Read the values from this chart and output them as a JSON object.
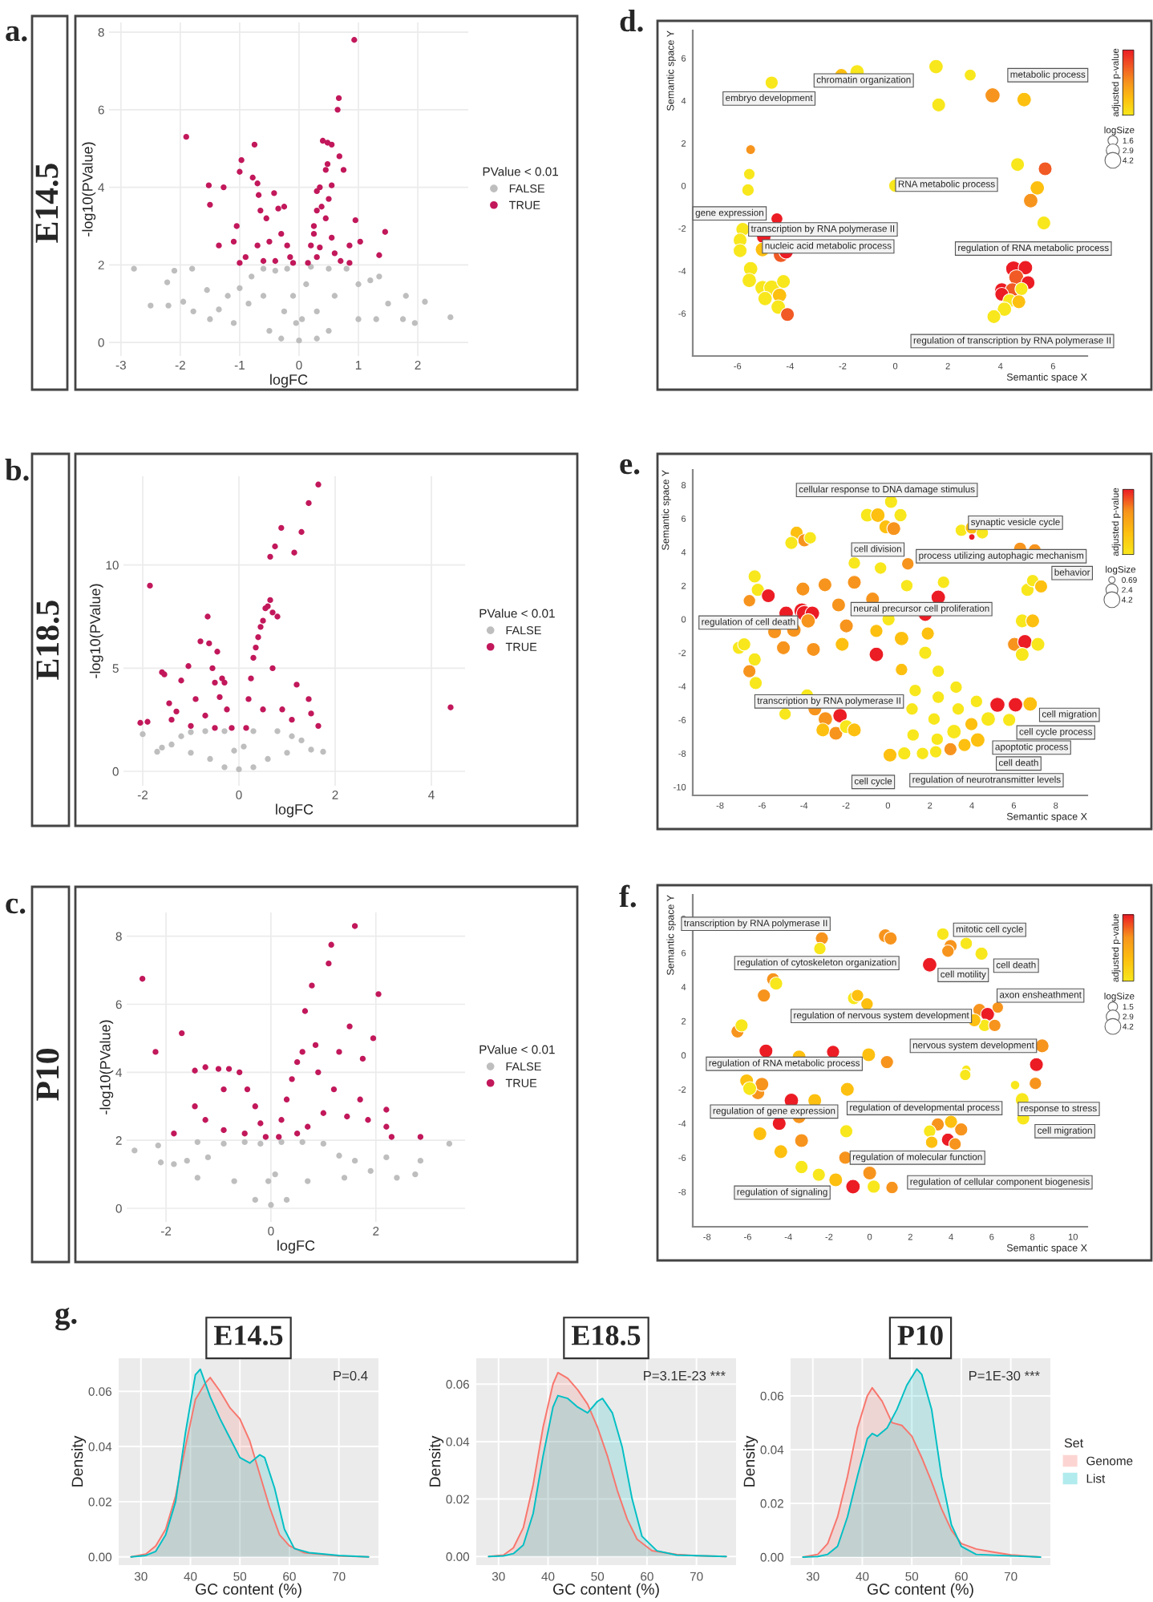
{
  "chart_data": [
    {
      "type": "scatter",
      "annotations": [
        "a.",
        "E14.5"
      ],
      "xlabel": "logFC",
      "ylabel": "-log10(PValue)",
      "legend_title": "PValue < 0.01",
      "legend": "right",
      "grid": true,
      "marker": "circle",
      "xlim": [
        -3.2,
        2.85
      ],
      "xticks": [
        -3,
        -2,
        -1,
        0,
        1,
        2
      ],
      "ylim": [
        -0.35,
        8.25
      ],
      "yticks": [
        0,
        2,
        4,
        6,
        8
      ],
      "series": [
        {
          "name": "FALSE",
          "color": "#bebebe",
          "x": [
            -2.78,
            -2.5,
            -2.22,
            -2.2,
            -2.1,
            -1.95,
            -1.8,
            -1.78,
            -1.55,
            -1.35,
            -1.2,
            -1.0,
            -0.85,
            -0.8,
            -0.6,
            -0.4,
            -0.2,
            -0.1,
            -0.05,
            0,
            0.05,
            0.12,
            0.2,
            0.5,
            0.8,
            1.0,
            1.2,
            1.35,
            1.5,
            1.75,
            1.8,
            1.95,
            2.12,
            2.55,
            -0.5,
            0.5,
            -0.3,
            0.3,
            -1.1,
            1.0,
            -0.6,
            0.6,
            -0.25,
            0.3,
            1.3,
            -1.5
          ],
          "values": [
            1.9,
            0.95,
            1.55,
            0.95,
            1.85,
            1.05,
            1.9,
            0.8,
            1.35,
            0.85,
            1.2,
            1.4,
            1.0,
            1.7,
            1.9,
            1.85,
            1.9,
            1.2,
            0.5,
            0.05,
            0.6,
            1.5,
            1.95,
            1.9,
            1.9,
            1.5,
            1.6,
            1.7,
            1.0,
            0.6,
            1.2,
            0.5,
            1.05,
            0.65,
            0.3,
            0.3,
            0.1,
            0.1,
            0.5,
            0.6,
            1.2,
            1.2,
            0.8,
            0.8,
            0.6,
            0.6
          ]
        },
        {
          "name": "TRUE",
          "color": "#c2185b",
          "x": [
            -1.9,
            -1.52,
            -1.5,
            -1.27,
            -1.35,
            -1.1,
            -1.0,
            -0.97,
            -0.75,
            -0.78,
            -0.7,
            -0.68,
            -0.65,
            -0.42,
            -0.35,
            -0.25,
            -0.55,
            -1.05,
            -0.9,
            -0.7,
            -0.5,
            -0.3,
            -0.2,
            -0.15,
            -0.4,
            -0.6,
            -1.0,
            -0.1,
            0.15,
            0.2,
            0.25,
            0.3,
            0.35,
            0.3,
            0.38,
            0.45,
            0.5,
            0.55,
            0.4,
            0.48,
            0.55,
            0.48,
            0.45,
            0.65,
            0.67,
            0.68,
            0.75,
            0.93,
            0.95,
            1.03,
            1.45,
            1.35,
            0.85,
            0.85,
            0.6,
            0.55,
            0.7,
            0.3,
            0.25,
            0.35
          ],
          "values": [
            5.3,
            4.05,
            3.55,
            4.0,
            2.5,
            2.6,
            4.4,
            4.7,
            5.1,
            4.25,
            4.1,
            3.8,
            3.4,
            3.85,
            3.45,
            3.5,
            3.2,
            3.0,
            2.2,
            2.5,
            2.6,
            2.8,
            2.5,
            2.2,
            2.1,
            2.1,
            2.05,
            2.05,
            2.05,
            2.5,
            3.0,
            3.4,
            4.0,
            3.9,
            3.5,
            3.2,
            3.7,
            4.05,
            5.2,
            5.15,
            5.1,
            4.6,
            4.45,
            6.0,
            6.3,
            4.8,
            4.45,
            7.8,
            3.15,
            2.6,
            2.85,
            2.25,
            2.5,
            2.05,
            2.3,
            2.7,
            2.1,
            2.2,
            2.8,
            2.45
          ]
        }
      ]
    },
    {
      "type": "scatter",
      "annotations": [
        "b.",
        "E18.5"
      ],
      "xlabel": "logFC",
      "ylabel": "-log10(PValue)",
      "legend_title": "PValue < 0.01",
      "legend": "right",
      "grid": true,
      "marker": "circle",
      "xlim": [
        -2.4,
        4.7
      ],
      "xticks": [
        -2,
        0,
        2,
        4
      ],
      "ylim": [
        -0.7,
        14.3
      ],
      "yticks": [
        0,
        5,
        10
      ],
      "series": [
        {
          "name": "FALSE",
          "color": "#bebebe",
          "x": [
            -2.0,
            -1.6,
            -1.4,
            -1.2,
            -1.0,
            -0.7,
            -0.3,
            -0.1,
            0,
            0.1,
            0.3,
            0.8,
            1.1,
            1.3,
            1.5,
            1.75,
            -0.6,
            0.6,
            -0.3,
            0.3,
            -1.0,
            1.0,
            -1.7
          ],
          "values": [
            1.8,
            1.15,
            1.3,
            1.7,
            1.9,
            1.95,
            1.95,
            1.0,
            0.1,
            1.2,
            1.95,
            1.95,
            1.7,
            1.5,
            1.05,
            0.95,
            0.6,
            0.6,
            0.2,
            0.2,
            0.9,
            0.9,
            0.95
          ]
        },
        {
          "name": "TRUE",
          "color": "#c2185b",
          "x": [
            -2.05,
            -1.9,
            -1.85,
            -1.6,
            -1.55,
            -1.45,
            -1.4,
            -1.2,
            -1.05,
            -1.3,
            -0.9,
            -0.8,
            -0.65,
            -0.62,
            -0.55,
            -0.5,
            -0.45,
            -0.4,
            -0.35,
            -0.3,
            -0.25,
            -0.7,
            -1.0,
            -0.5,
            -0.15,
            0.15,
            0.2,
            0.25,
            0.3,
            0.35,
            0.4,
            0.45,
            0.5,
            0.55,
            0.6,
            0.65,
            0.7,
            0.8,
            0.65,
            0.75,
            0.88,
            1.15,
            1.3,
            1.45,
            1.65,
            1.2,
            1.45,
            1.5,
            1.65,
            1.1,
            0.9,
            0.7,
            0.5,
            4.4
          ],
          "values": [
            2.35,
            2.4,
            9.0,
            4.8,
            4.7,
            3.3,
            2.5,
            4.4,
            5.1,
            2.9,
            3.5,
            6.3,
            7.5,
            6.2,
            5.0,
            4.3,
            5.8,
            3.6,
            4.5,
            4.3,
            3.0,
            2.7,
            2.2,
            2.1,
            2.1,
            2.1,
            3.5,
            4.5,
            5.5,
            6.0,
            6.5,
            7.0,
            7.3,
            7.9,
            8.0,
            8.3,
            7.7,
            7.5,
            10.4,
            10.9,
            11.8,
            10.6,
            11.6,
            13.0,
            13.9,
            4.2,
            3.5,
            2.8,
            2.2,
            2.5,
            3.0,
            5.0,
            3.0,
            3.1
          ]
        }
      ]
    },
    {
      "type": "scatter",
      "annotations": [
        "c.",
        "P10"
      ],
      "xlabel": "logFC",
      "ylabel": "-log10(PValue)",
      "legend_title": "PValue < 0.01",
      "legend": "right",
      "grid": true,
      "marker": "circle",
      "xlim": [
        -2.75,
        3.7
      ],
      "xticks": [
        -2,
        0,
        2
      ],
      "ylim": [
        -0.4,
        8.7
      ],
      "yticks": [
        0,
        2,
        4,
        6,
        8
      ],
      "series": [
        {
          "name": "FALSE",
          "color": "#bebebe",
          "x": [
            -2.6,
            -2.15,
            -2.1,
            -1.85,
            -1.6,
            -1.4,
            -1.2,
            -0.9,
            -0.5,
            -0.2,
            -0.05,
            0,
            0.08,
            0.2,
            0.6,
            1.0,
            1.3,
            1.6,
            1.9,
            2.2,
            2.75,
            2.85,
            3.4,
            -0.7,
            0.7,
            -0.3,
            0.3,
            -1.4,
            1.4,
            2.4
          ],
          "values": [
            1.7,
            1.85,
            1.35,
            1.3,
            1.4,
            1.95,
            1.5,
            1.9,
            1.95,
            1.9,
            0.8,
            0.1,
            1.0,
            1.95,
            1.95,
            1.9,
            1.55,
            1.4,
            1.1,
            1.5,
            1.0,
            1.4,
            1.9,
            0.8,
            0.8,
            0.25,
            0.25,
            0.9,
            0.9,
            0.9
          ]
        },
        {
          "name": "TRUE",
          "color": "#c2185b",
          "x": [
            -2.45,
            -2.2,
            -1.85,
            -1.7,
            -1.45,
            -1.45,
            -1.25,
            -1.0,
            -0.9,
            -0.8,
            -0.6,
            -0.45,
            -0.3,
            -0.2,
            -0.1,
            -0.5,
            -0.9,
            -1.25,
            0.15,
            0.2,
            0.3,
            0.4,
            0.5,
            0.6,
            0.65,
            0.78,
            0.85,
            0.9,
            1.1,
            1.15,
            1.5,
            1.6,
            1.3,
            1.2,
            1.0,
            0.7,
            1.45,
            1.75,
            1.7,
            1.85,
            1.95,
            2.05,
            2.2,
            2.2,
            2.3,
            2.85,
            0.5
          ],
          "values": [
            6.75,
            4.6,
            2.2,
            5.15,
            4.05,
            3.0,
            4.15,
            4.1,
            3.5,
            4.1,
            4.0,
            3.5,
            3.0,
            2.5,
            2.1,
            2.2,
            2.3,
            2.6,
            2.1,
            2.6,
            3.2,
            3.8,
            4.3,
            4.6,
            5.8,
            6.55,
            4.8,
            4.0,
            7.2,
            7.75,
            5.35,
            8.3,
            4.6,
            3.5,
            2.8,
            2.4,
            2.7,
            4.4,
            3.2,
            2.6,
            5.0,
            6.3,
            2.9,
            2.4,
            2.1,
            2.1,
            2.2
          ]
        }
      ]
    },
    {
      "type": "bubble",
      "xlabel": "Semantic space X",
      "ylabel": "Semantic space Y",
      "clabel": "adjusted p-value",
      "legend_title": "logSize",
      "size_legend": [
        1.6,
        2.9,
        4.2
      ],
      "xlim": [
        -7.7,
        7.3
      ],
      "xticks": [
        -6,
        -4,
        -2,
        0,
        2,
        4,
        6
      ],
      "ylim": [
        -8.0,
        7.3
      ],
      "yticks": [
        -6,
        -4,
        -2,
        0,
        2,
        4,
        6
      ],
      "annotations": [
        "d.",
        "embryo development",
        "chromatin organization",
        "metabolic process",
        "RNA metabolic process",
        "gene expression",
        "transcription by RNA polymerase II",
        "nucleic acid metabolic process",
        "regulation of RNA metabolic process",
        "regulation of transcription by RNA polymerase II"
      ],
      "series": [
        {
          "x": [
            -4.7,
            -1.45,
            -2.05,
            1.55,
            2.85,
            3.7,
            4.9,
            1.65,
            -5.5,
            -5.55,
            -5.6,
            0,
            4.65,
            5.7,
            5.4,
            5.15,
            5.65,
            -4.5,
            -5.8,
            -5.9,
            -5.9,
            -5.0,
            -5.05,
            -4.35,
            -4.15,
            -5.5,
            -5.55,
            -5.05,
            -4.7,
            -4.25,
            -4.95,
            -4.4,
            -4.45,
            -4.1,
            4.5,
            4.95,
            4.6,
            5.05,
            4.05,
            4.45,
            4.8,
            4.05,
            4.35,
            4.7,
            4.15,
            3.75
          ],
          "values": [
            4.85,
            5.35,
            5.2,
            5.6,
            5.2,
            4.25,
            4.05,
            3.8,
            1.7,
            0.55,
            -0.2,
            0,
            1.0,
            0.8,
            -0.1,
            -0.7,
            -1.75,
            -1.55,
            -2.05,
            -2.55,
            -3.05,
            -2.4,
            -3.0,
            -3.25,
            -3.1,
            -3.9,
            -4.45,
            -4.8,
            -4.8,
            -4.5,
            -5.3,
            -5.15,
            -5.7,
            -6.05,
            -3.9,
            -3.85,
            -4.3,
            -4.55,
            -4.9,
            -4.9,
            -4.85,
            -5.1,
            -5.4,
            -5.45,
            -5.8,
            -6.15
          ],
          "sizes": [
            2.9,
            3.5,
            2.9,
            3.5,
            2.4,
            3.8,
            3.5,
            3.2,
            1.6,
            2.2,
            2.6,
            2.9,
            3.2,
            3.2,
            3.5,
            3.5,
            3.2,
            2.4,
            3.2,
            3.2,
            3.2,
            3.5,
            3.5,
            3.8,
            3.5,
            3.5,
            3.5,
            3.8,
            4.2,
            3.2,
            3.5,
            3.5,
            3.5,
            3.2,
            4.2,
            3.5,
            3.8,
            3.2,
            3.5,
            3.5,
            2.9,
            3.2,
            3.2,
            3.2,
            3.5,
            3.2
          ],
          "colors": [
            "#f8e71c",
            "#f8e71c",
            "#fdc010",
            "#f8e71c",
            "#f8e71c",
            "#f7941d",
            "#fdc010",
            "#f8e71c",
            "#f7941d",
            "#f8e71c",
            "#f8e71c",
            "#f8e71c",
            "#f8e71c",
            "#f15a24",
            "#fdc010",
            "#f7941d",
            "#f8e71c",
            "#ec1c24",
            "#f8e71c",
            "#f8e71c",
            "#f8e71c",
            "#ec1c24",
            "#fdc010",
            "#f15a24",
            "#ec1c24",
            "#f8e71c",
            "#f8e71c",
            "#f8e71c",
            "#f8e71c",
            "#f8e71c",
            "#f8e71c",
            "#fdc010",
            "#f8e71c",
            "#f15a24",
            "#ec1c24",
            "#ec1c24",
            "#f15a24",
            "#ec1c24",
            "#ec1c24",
            "#f15a24",
            "#f8e71c",
            "#ec1c24",
            "#f8e71c",
            "#fdc010",
            "#f8e71c",
            "#f8e71c"
          ]
        }
      ]
    },
    {
      "type": "bubble",
      "xlabel": "Semantic space X",
      "ylabel": "Semantic space Y",
      "clabel": "adjusted p-value",
      "legend_title": "logSize",
      "size_legend": [
        0.69,
        2.4,
        4.2
      ],
      "xlim": [
        -9.3,
        9.5
      ],
      "xticks": [
        -8,
        -6,
        -4,
        -2,
        0,
        2,
        4,
        6,
        8
      ],
      "ylim": [
        -10.5,
        8.9
      ],
      "yticks": [
        -10,
        -8,
        -6,
        -4,
        -2,
        0,
        2,
        4,
        6,
        8
      ],
      "annotations": [
        "e.",
        "cellular response to DNA damage stimulus",
        "synaptic vesicle cycle",
        "cell division",
        "process utilizing autophagic mechanism",
        "behavior",
        "neural precursor cell proliferation",
        "regulation of cell death",
        "transcription by RNA polymerase II",
        "cell migration",
        "cell cycle process",
        "apoptotic process",
        "cell death",
        "cell cycle",
        "regulation of neurotransmitter levels"
      ],
      "series": [
        {
          "x": [
            0.15,
            -0.98,
            -0.48,
            0.6,
            -0.1,
            0.28,
            -4.35,
            -3.98,
            -4.6,
            -3.7,
            3.5,
            4.0,
            4.5,
            4.0,
            -1.6,
            -0.35,
            0.95,
            0.9,
            2.65,
            -6.35,
            -6.2,
            -6.6,
            -5.7,
            -4.05,
            -3.0,
            -1.6,
            -0.73,
            -2.35,
            2.4,
            1.78,
            -4.85,
            -4.1,
            -3.98,
            -3.6,
            -4.48,
            -3.8,
            -5.4,
            -4.98,
            -3.55,
            -2.18,
            -7.1,
            -6.85,
            -6.35,
            -6.6,
            -6.3,
            -1.98,
            -0.55,
            0.03,
            0.65,
            1.9,
            -0.55,
            1.78,
            0.65,
            2.4,
            6.65,
            6.9,
            7.3,
            6.4,
            6.9,
            6.03,
            6.53,
            7.15,
            6.4,
            6.3,
            7.0,
            -3.85,
            -4.9,
            -3.48,
            -2.98,
            -2.28,
            -3.1,
            -2.48,
            -1.98,
            -1.6,
            1.3,
            2.4,
            3.25,
            4.22,
            1.15,
            2.2,
            3.35,
            1.2,
            2.35,
            5.22,
            6.08,
            6.78,
            4.78,
            5.78,
            3.98,
            3.15,
            4.28,
            3.65,
            2.98,
            2.28,
            1.65,
            0.1,
            0.78
          ],
          "values": [
            7.0,
            6.2,
            6.2,
            6.2,
            5.5,
            5.4,
            5.15,
            4.7,
            4.55,
            4.85,
            5.3,
            5.45,
            5.15,
            4.9,
            3.35,
            3.05,
            3.3,
            2.0,
            2.2,
            2.55,
            1.75,
            1.1,
            1.4,
            1.8,
            2.05,
            2.2,
            1.2,
            0.85,
            1.3,
            0.28,
            0.35,
            0.5,
            0.35,
            0.35,
            -0.65,
            -0.1,
            -0.75,
            -1.7,
            -1.8,
            -1.5,
            -1.7,
            -1.5,
            -2.4,
            -3.1,
            -3.8,
            -0.4,
            -0.7,
            0,
            -1.15,
            -0.85,
            -2.1,
            -2.0,
            -3.0,
            -3.1,
            1.75,
            2.3,
            1.95,
            -0.1,
            -0.1,
            -1.5,
            -1.35,
            -1.5,
            -2.1,
            4.2,
            4.1,
            -4.55,
            -5.65,
            -5.35,
            -5.95,
            -5.75,
            -6.6,
            -6.8,
            -6.4,
            -6.6,
            -4.25,
            -4.65,
            -4.05,
            -4.9,
            -5.35,
            -5.95,
            -5.35,
            -6.9,
            -7.15,
            -5.1,
            -5.1,
            -5.05,
            -5.95,
            -6.0,
            -6.25,
            -6.7,
            -7.2,
            -7.5,
            -7.75,
            -7.9,
            -8.0,
            -8.1,
            -8.0
          ],
          "sizes": [
            2.9,
            3.2,
            3.5,
            2.9,
            3.2,
            3.2,
            2.9,
            2.9,
            2.9,
            2.6,
            2.6,
            2.9,
            2.6,
            0.69,
            2.6,
            2.6,
            2.6,
            2.6,
            2.6,
            2.9,
            2.9,
            2.6,
            3.2,
            3.2,
            3.2,
            3.2,
            3.2,
            3.2,
            3.5,
            3.2,
            3.5,
            4.2,
            4.2,
            3.5,
            3.5,
            3.5,
            3.2,
            3.2,
            3.2,
            3.2,
            2.9,
            2.9,
            2.9,
            2.9,
            2.9,
            3.2,
            2.9,
            2.9,
            3.5,
            2.9,
            3.5,
            2.9,
            2.6,
            2.6,
            2.9,
            2.6,
            2.9,
            3.2,
            3.2,
            3.2,
            3.5,
            3.2,
            3.2,
            2.9,
            2.9,
            2.9,
            2.6,
            3.2,
            3.5,
            3.5,
            3.2,
            3.2,
            3.2,
            3.2,
            2.6,
            2.6,
            2.6,
            2.6,
            2.6,
            2.6,
            2.6,
            2.6,
            2.6,
            3.8,
            3.5,
            3.5,
            3.5,
            2.9,
            2.9,
            3.5,
            3.5,
            2.9,
            2.9,
            2.6,
            2.6,
            3.2,
            2.9
          ],
          "colors": [
            "#f8e71c",
            "#f8e71c",
            "#fdc010",
            "#f8e71c",
            "#fdc010",
            "#f7941d",
            "#fdc010",
            "#f7941d",
            "#f8e71c",
            "#f8e71c",
            "#f8e71c",
            "#fdc010",
            "#f8e71c",
            "#ec1c24",
            "#f8e71c",
            "#f8e71c",
            "#f7941d",
            "#f8e71c",
            "#f8e71c",
            "#f8e71c",
            "#f8e71c",
            "#f7941d",
            "#ec1c24",
            "#f7941d",
            "#f7941d",
            "#f7941d",
            "#f7941d",
            "#f7941d",
            "#ec1c24",
            "#ec1c24",
            "#ec1c24",
            "#ec1c24",
            "#ec1c24",
            "#ec1c24",
            "#f7941d",
            "#f7941d",
            "#f7941d",
            "#f7941d",
            "#f7941d",
            "#fdc010",
            "#f8e71c",
            "#f8e71c",
            "#f8e71c",
            "#f7941d",
            "#f8e71c",
            "#f7941d",
            "#fdc010",
            "#f8e71c",
            "#fdc010",
            "#fdc010",
            "#ec1c24",
            "#f8e71c",
            "#fdc010",
            "#f8e71c",
            "#f8e71c",
            "#f8e71c",
            "#fdc010",
            "#f8e71c",
            "#fdc010",
            "#f7941d",
            "#ec1c24",
            "#f8e71c",
            "#f8e71c",
            "#f7941d",
            "#f7941d",
            "#f8e71c",
            "#f8e71c",
            "#f7941d",
            "#f7941d",
            "#ec1c24",
            "#fdc010",
            "#f7941d",
            "#f8e71c",
            "#fdc010",
            "#f8e71c",
            "#f8e71c",
            "#f8e71c",
            "#f8e71c",
            "#f8e71c",
            "#f8e71c",
            "#f8e71c",
            "#f8e71c",
            "#f8e71c",
            "#ec1c24",
            "#ec1c24",
            "#fdc010",
            "#f8e71c",
            "#f8e71c",
            "#fdc010",
            "#f8e71c",
            "#fdc010",
            "#fdc010",
            "#f7941d",
            "#f8e71c",
            "#f8e71c",
            "#fdc010",
            "#f8e71c"
          ]
        }
      ]
    },
    {
      "type": "bubble",
      "xlabel": "Semantic space X",
      "ylabel": "Semantic space Y",
      "clabel": "adjusted p-value",
      "legend_title": "logSize",
      "size_legend": [
        1.5,
        2.9,
        4.2
      ],
      "xlim": [
        -8.7,
        10.7
      ],
      "xticks": [
        -8,
        -6,
        -4,
        -2,
        0,
        2,
        4,
        6,
        8,
        10
      ],
      "ylim": [
        -10.05,
        9.4
      ],
      "yticks": [
        -8,
        -6,
        -4,
        -2,
        0,
        2,
        4,
        6,
        8
      ],
      "annotations": [
        "f.",
        "transcription by RNA polymerase II",
        "mitotic cell cycle",
        "cell death",
        "cell motility",
        "regulation of cytoskeleton organization",
        "axon ensheathment",
        "regulation of nervous system development",
        "nervous system development",
        "regulation of RNA metabolic process",
        "regulation of gene expression",
        "regulation of developmental process",
        "response to stress",
        "cell migration",
        "regulation of molecular function",
        "regulation of signaling",
        "regulation of cellular component biogenesis"
      ],
      "series": [
        {
          "x": [
            -2.35,
            0.77,
            1.03,
            3.6,
            3.98,
            4.75,
            2.95,
            5.5,
            3.85,
            -2.45,
            -4.75,
            -4.6,
            -5.2,
            -0.77,
            -0.13,
            -0.6,
            -6.5,
            -6.3,
            -5.1,
            -3.47,
            -1.8,
            -0.05,
            0.85,
            5.4,
            5.8,
            5.65,
            6.15,
            6.3,
            5.15,
            8.48,
            8.2,
            4.75,
            4.7,
            7.15,
            8.15,
            7.5,
            7.55,
            -6.05,
            -5.5,
            -5.3,
            -5.9,
            -3.85,
            -3.47,
            -2.7,
            -4.45,
            -5.4,
            -3.35,
            -4.37,
            -1.1,
            -1.15,
            -1.2,
            -3.35,
            -2.5,
            -1.67,
            -0.82,
            0,
            0.2,
            1.1,
            3.35,
            4.0,
            4.5,
            3.85,
            2.95,
            3.05,
            4.2
          ],
          "values": [
            6.85,
            7.0,
            6.85,
            7.1,
            6.4,
            6.55,
            5.3,
            5.95,
            6.1,
            6.25,
            4.45,
            4.2,
            3.5,
            3.35,
            3.0,
            3.5,
            1.4,
            1.75,
            0.25,
            -0.1,
            0.2,
            0.03,
            -0.4,
            2.65,
            2.4,
            1.75,
            1.75,
            2.8,
            2.05,
            0.55,
            -0.55,
            -0.85,
            -1.15,
            -1.75,
            -1.65,
            -2.6,
            -3.7,
            -1.5,
            -2.2,
            -1.7,
            -1.95,
            -2.65,
            -3.6,
            -2.65,
            -4.0,
            -4.6,
            -5.0,
            -5.65,
            -2.0,
            -4.45,
            -6.0,
            -6.55,
            -7.0,
            -7.3,
            -7.7,
            -6.9,
            -7.7,
            -7.75,
            -4.05,
            -3.9,
            -4.35,
            -4.95,
            -4.45,
            -5.1,
            -5.2
          ],
          "sizes": [
            2.9,
            3.2,
            2.9,
            2.6,
            2.9,
            2.6,
            3.5,
            2.9,
            2.6,
            2.6,
            2.9,
            2.9,
            2.9,
            2.9,
            2.6,
            2.6,
            2.9,
            2.9,
            3.2,
            3.2,
            2.9,
            3.2,
            2.9,
            2.9,
            3.2,
            2.6,
            2.6,
            2.2,
            2.9,
            3.2,
            3.2,
            1.5,
            2.2,
            1.5,
            2.6,
            3.2,
            2.9,
            3.2,
            3.2,
            3.2,
            3.2,
            3.5,
            3.2,
            3.2,
            3.2,
            3.2,
            3.2,
            3.2,
            3.2,
            2.9,
            2.9,
            2.9,
            2.9,
            3.2,
            3.5,
            3.2,
            2.9,
            2.6,
            2.9,
            2.9,
            2.9,
            2.9,
            2.6,
            2.6,
            2.6
          ],
          "colors": [
            "#f7941d",
            "#f7941d",
            "#f7941d",
            "#f8e71c",
            "#f7941d",
            "#f8e71c",
            "#ec1c24",
            "#f8e71c",
            "#f7941d",
            "#f8e71c",
            "#f7941d",
            "#f8e71c",
            "#f7941d",
            "#f8e71c",
            "#fdc010",
            "#fdc010",
            "#f7941d",
            "#f8e71c",
            "#ec1c24",
            "#fdc010",
            "#ec1c24",
            "#fdc010",
            "#f7941d",
            "#f7941d",
            "#ec1c24",
            "#f8e71c",
            "#f7941d",
            "#f7941d",
            "#fdc010",
            "#f7941d",
            "#ec1c24",
            "#f8e71c",
            "#f8e71c",
            "#f8e71c",
            "#f7941d",
            "#f8e71c",
            "#f8e71c",
            "#fdc010",
            "#f7941d",
            "#f7941d",
            "#f8e71c",
            "#ec1c24",
            "#f7941d",
            "#fdc010",
            "#ec1c24",
            "#fdc010",
            "#f7941d",
            "#fdc010",
            "#fdc010",
            "#f8e71c",
            "#f7941d",
            "#f8e71c",
            "#f8e71c",
            "#fdc010",
            "#ec1c24",
            "#f7941d",
            "#f8e71c",
            "#f7941d",
            "#f7941d",
            "#fdc010",
            "#f7941d",
            "#ec1c24",
            "#f8e71c",
            "#fdc010",
            "#f7941d"
          ]
        }
      ]
    },
    {
      "type": "area",
      "title": "E14.5",
      "annotations": [
        "g.",
        "P=0.4"
      ],
      "xlabel": "GC content (%)",
      "ylabel": "Density",
      "grid": true,
      "xlim": [
        25.5,
        78
      ],
      "xticks": [
        30,
        40,
        50,
        60,
        70
      ],
      "ylim": [
        -0.003,
        0.072
      ],
      "yticks": [
        {
          "value": 0,
          "label": "0.00"
        },
        {
          "value": 0.02,
          "label": "0.02"
        },
        {
          "value": 0.04,
          "label": "0.04"
        },
        {
          "value": 0.06,
          "label": "0.06"
        }
      ],
      "series": [
        {
          "color": "#f8766d",
          "x": [
            28,
            31,
            33,
            35,
            37,
            39,
            41,
            43,
            44,
            46,
            48,
            50,
            52,
            54,
            56,
            58,
            60,
            63,
            66,
            70,
            76
          ],
          "values": [
            0,
            0.001,
            0.004,
            0.01,
            0.022,
            0.04,
            0.057,
            0.063,
            0.065,
            0.06,
            0.054,
            0.05,
            0.042,
            0.03,
            0.018,
            0.008,
            0.004,
            0.0015,
            0.001,
            0.0003,
            0
          ]
        },
        {
          "color": "#00bfc4",
          "x": [
            28,
            31,
            33,
            35,
            37,
            39,
            41,
            42,
            43,
            44,
            46,
            48,
            50,
            52,
            54,
            55,
            57,
            59,
            61,
            64,
            70,
            76
          ],
          "values": [
            0,
            0.0005,
            0.002,
            0.008,
            0.02,
            0.045,
            0.066,
            0.068,
            0.063,
            0.058,
            0.05,
            0.043,
            0.036,
            0.034,
            0.037,
            0.036,
            0.025,
            0.01,
            0.003,
            0.0015,
            0.0005,
            0
          ]
        }
      ]
    },
    {
      "type": "area",
      "title": "E18.5",
      "annotations": [
        "P=3.1E-23 ***"
      ],
      "xlabel": "GC content (%)",
      "ylabel": "Density",
      "grid": true,
      "xlim": [
        25.5,
        78
      ],
      "xticks": [
        30,
        40,
        50,
        60,
        70
      ],
      "ylim": [
        -0.003,
        0.069
      ],
      "yticks": [
        {
          "value": 0,
          "label": "0.00"
        },
        {
          "value": 0.02,
          "label": "0.02"
        },
        {
          "value": 0.04,
          "label": "0.04"
        },
        {
          "value": 0.06,
          "label": "0.06"
        }
      ],
      "series": [
        {
          "color": "#f8766d",
          "x": [
            28,
            31,
            33,
            35,
            37,
            39,
            41,
            42,
            44,
            46,
            48,
            50,
            52,
            54,
            56,
            58,
            61,
            66,
            70,
            76
          ],
          "values": [
            0,
            0.0005,
            0.003,
            0.01,
            0.025,
            0.045,
            0.06,
            0.064,
            0.062,
            0.058,
            0.053,
            0.045,
            0.035,
            0.023,
            0.013,
            0.006,
            0.002,
            0.0007,
            0.0003,
            0
          ]
        },
        {
          "color": "#00bfc4",
          "x": [
            28,
            31,
            33,
            35,
            37,
            39,
            41,
            42,
            44,
            46,
            48,
            50,
            51,
            53,
            55,
            57,
            59,
            62,
            66,
            76
          ],
          "values": [
            0,
            0.0002,
            0.001,
            0.004,
            0.015,
            0.035,
            0.052,
            0.056,
            0.055,
            0.052,
            0.05,
            0.054,
            0.055,
            0.05,
            0.038,
            0.02,
            0.007,
            0.002,
            0.0005,
            0
          ]
        }
      ]
    },
    {
      "type": "area",
      "title": "P10",
      "annotations": [
        "P=1E-30 ***"
      ],
      "xlabel": "GC content (%)",
      "ylabel": "Density",
      "grid": true,
      "legend": "right",
      "legend_title": "Set",
      "xlim": [
        25.5,
        78
      ],
      "xticks": [
        30,
        40,
        50,
        60,
        70
      ],
      "ylim": [
        -0.003,
        0.074
      ],
      "yticks": [
        {
          "value": 0,
          "label": "0.00"
        },
        {
          "value": 0.02,
          "label": "0.02"
        },
        {
          "value": 0.04,
          "label": "0.04"
        },
        {
          "value": 0.06,
          "label": "0.06"
        }
      ],
      "series": [
        {
          "name": "Genome",
          "color": "#f8766d",
          "x": [
            28,
            31,
            33,
            35,
            37,
            39,
            41,
            42,
            44,
            46,
            48,
            50,
            52,
            54,
            56,
            58,
            60,
            63,
            66,
            70,
            76
          ],
          "values": [
            0,
            0.001,
            0.005,
            0.015,
            0.03,
            0.048,
            0.06,
            0.063,
            0.058,
            0.05,
            0.049,
            0.045,
            0.037,
            0.028,
            0.018,
            0.01,
            0.005,
            0.003,
            0.002,
            0.0008,
            0
          ]
        },
        {
          "name": "List",
          "color": "#00bfc4",
          "x": [
            28,
            31,
            33,
            35,
            37,
            39,
            41,
            42,
            43,
            45,
            47,
            49,
            51,
            52,
            54,
            56,
            58,
            60,
            63,
            76
          ],
          "values": [
            0,
            0.0002,
            0.001,
            0.004,
            0.015,
            0.03,
            0.044,
            0.046,
            0.045,
            0.048,
            0.055,
            0.064,
            0.07,
            0.068,
            0.055,
            0.03,
            0.012,
            0.004,
            0.001,
            0
          ]
        }
      ]
    }
  ]
}
